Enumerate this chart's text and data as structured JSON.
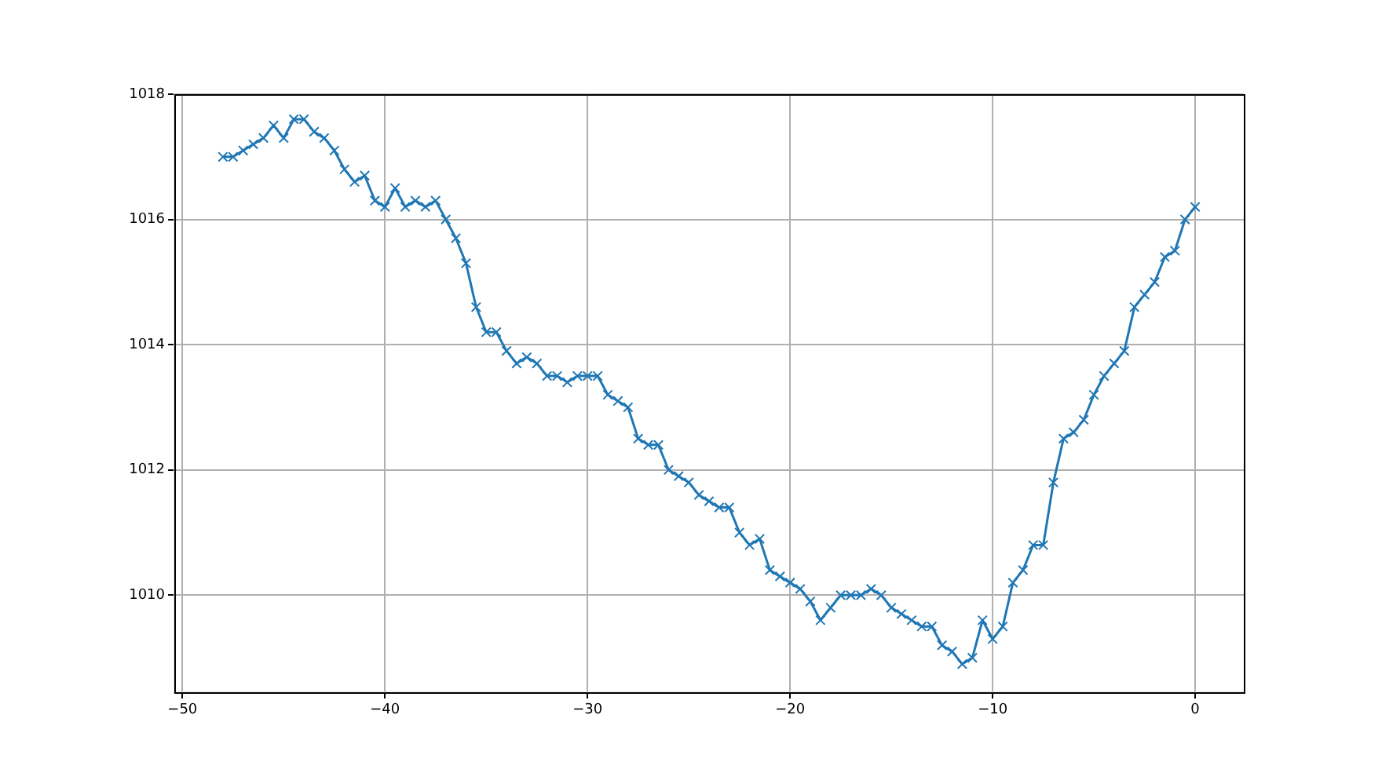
{
  "chart_data": {
    "type": "line",
    "marker": "cross",
    "grid": true,
    "xlim": [
      -50.4,
      2.4
    ],
    "ylim": [
      1008.45,
      1018
    ],
    "xticks": [
      -50,
      -40,
      -30,
      -20,
      -10,
      0
    ],
    "yticks": [
      1010,
      1012,
      1014,
      1016,
      1018
    ],
    "x": [
      -48,
      -47.5,
      -47,
      -46.5,
      -46,
      -45.5,
      -45,
      -44.5,
      -44,
      -43.5,
      -43,
      -42.5,
      -42,
      -41.5,
      -41,
      -40.5,
      -40,
      -39.5,
      -39,
      -38.5,
      -38,
      -37.5,
      -37,
      -36.5,
      -36,
      -35.5,
      -35,
      -34.5,
      -34,
      -33.5,
      -33,
      -32.5,
      -32,
      -31.5,
      -31,
      -30.5,
      -30,
      -29.5,
      -29,
      -28.5,
      -28,
      -27.5,
      -27,
      -26.5,
      -26,
      -25.5,
      -25,
      -24.5,
      -24,
      -23.5,
      -23,
      -22.5,
      -22,
      -21.5,
      -21,
      -20.5,
      -20,
      -19.5,
      -19,
      -18.5,
      -18,
      -17.5,
      -17,
      -16.5,
      -16,
      -15.5,
      -15,
      -14.5,
      -14,
      -13.5,
      -13,
      -12.5,
      -12,
      -11.5,
      -11,
      -10.5,
      -10,
      -9.5,
      -9,
      -8.5,
      -8,
      -7.5,
      -7,
      -6.5,
      -6,
      -5.5,
      -5,
      -4.5,
      -4,
      -3.5,
      -3,
      -2.5,
      -2,
      -1.5,
      -1,
      -0.5,
      0
    ],
    "series": [
      {
        "color": "#1f77b4",
        "values": [
          1017.0,
          1017.0,
          1017.1,
          1017.2,
          1017.3,
          1017.5,
          1017.3,
          1017.6,
          1017.6,
          1017.4,
          1017.3,
          1017.1,
          1016.8,
          1016.6,
          1016.7,
          1016.3,
          1016.2,
          1016.5,
          1016.2,
          1016.3,
          1016.2,
          1016.3,
          1016.0,
          1015.7,
          1015.3,
          1014.6,
          1014.2,
          1014.2,
          1013.9,
          1013.7,
          1013.8,
          1013.7,
          1013.5,
          1013.5,
          1013.4,
          1013.5,
          1013.5,
          1013.5,
          1013.2,
          1013.1,
          1013.0,
          1012.5,
          1012.4,
          1012.4,
          1012.0,
          1011.9,
          1011.8,
          1011.6,
          1011.5,
          1011.4,
          1011.4,
          1011.0,
          1010.8,
          1010.9,
          1010.4,
          1010.3,
          1010.2,
          1010.1,
          1009.9,
          1009.6,
          1009.8,
          1010.0,
          1010.0,
          1010.0,
          1010.1,
          1010.0,
          1009.8,
          1009.7,
          1009.6,
          1009.5,
          1009.5,
          1009.2,
          1009.1,
          1008.9,
          1009.0,
          1009.6,
          1009.3,
          1009.5,
          1010.2,
          1010.4,
          1010.8,
          1010.8,
          1011.8,
          1012.5,
          1012.6,
          1012.8,
          1013.2,
          1013.5,
          1013.7,
          1013.9,
          1014.6,
          1014.8,
          1015.0,
          1015.4,
          1015.5,
          1016.0,
          1016.2
        ]
      }
    ]
  }
}
